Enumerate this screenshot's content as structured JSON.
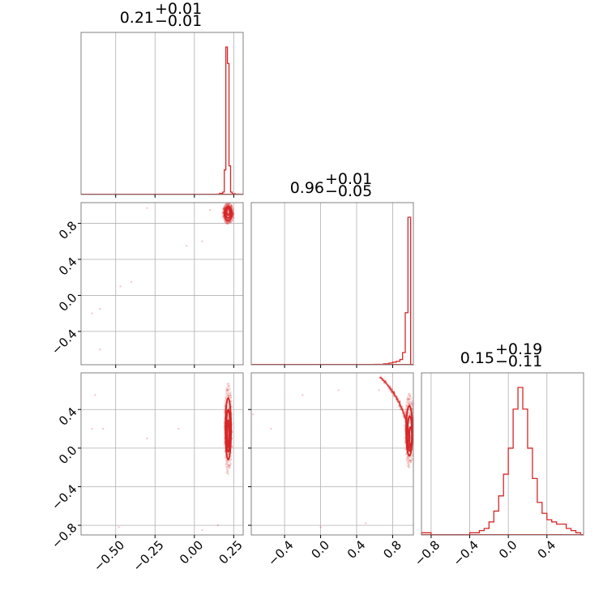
{
  "chart_data": {
    "type": "corner",
    "color": "#d62728",
    "grid": true,
    "parameter_ranges": [
      [
        -0.72,
        0.31
      ],
      [
        -0.77,
        1.03
      ],
      [
        -0.9,
        0.78
      ]
    ],
    "ticks": [
      [
        {
          "v": -0.5,
          "label": "−0.50"
        },
        {
          "v": -0.25,
          "label": "−0.25"
        },
        {
          "v": 0.0,
          "label": "0.00"
        },
        {
          "v": 0.25,
          "label": "0.25"
        }
      ],
      [
        {
          "v": -0.4,
          "label": "−0.4"
        },
        {
          "v": 0.0,
          "label": "0.0"
        },
        {
          "v": 0.4,
          "label": "0.4"
        },
        {
          "v": 0.8,
          "label": "0.8"
        }
      ],
      [
        {
          "v": -0.8,
          "label": "−0.8"
        },
        {
          "v": -0.4,
          "label": "−0.4"
        },
        {
          "v": 0.0,
          "label": "0.0"
        },
        {
          "v": 0.4,
          "label": "0.4"
        }
      ]
    ],
    "titles": [
      {
        "main": "0.21",
        "plus": "+0.01",
        "minus": "−0.01"
      },
      {
        "main": "0.96",
        "plus": "+0.01",
        "minus": "−0.05"
      },
      {
        "main": "0.15",
        "plus": "+0.19",
        "minus": "−0.11"
      }
    ],
    "histograms": [
      {
        "edges": [
          0.14,
          0.16,
          0.18,
          0.19,
          0.2,
          0.21,
          0.22,
          0.23,
          0.24,
          0.26,
          0.28
        ],
        "counts": [
          0.5,
          1.5,
          3,
          30,
          180,
          160,
          35,
          3,
          1,
          0.5
        ]
      },
      {
        "edges": [
          0.6,
          0.7,
          0.76,
          0.8,
          0.84,
          0.88,
          0.91,
          0.94,
          0.97,
          1.0,
          1.03
        ],
        "counts": [
          0.5,
          1,
          2,
          3,
          4,
          6,
          14,
          60,
          170,
          0
        ]
      },
      {
        "edges": [
          -0.9,
          -0.85,
          -0.8,
          -0.75,
          -0.7,
          -0.65,
          -0.6,
          -0.55,
          -0.5,
          -0.45,
          -0.4,
          -0.35,
          -0.3,
          -0.25,
          -0.2,
          -0.15,
          -0.1,
          -0.05,
          0.0,
          0.05,
          0.1,
          0.15,
          0.2,
          0.25,
          0.3,
          0.35,
          0.4,
          0.45,
          0.5,
          0.55,
          0.6,
          0.65,
          0.7,
          0.75,
          0.78
        ],
        "counts": [
          1,
          1,
          0,
          0,
          0,
          0,
          0,
          0,
          0,
          0,
          1,
          1,
          2,
          3,
          6,
          11,
          18,
          28,
          40,
          58,
          68,
          58,
          40,
          26,
          15,
          10,
          7,
          6,
          5,
          5,
          3,
          2,
          1,
          0
        ]
      }
    ],
    "scatter": {
      "p10": [
        [
          -0.65,
          -0.2
        ],
        [
          -0.6,
          -0.15
        ],
        [
          -0.47,
          0.1
        ],
        [
          -0.4,
          0.15
        ],
        [
          -0.05,
          0.55
        ],
        [
          0.05,
          0.6
        ],
        [
          0.1,
          0.95
        ],
        [
          -0.3,
          0.97
        ],
        [
          -0.6,
          -0.6
        ]
      ],
      "p20": [
        [
          -0.63,
          0.55
        ],
        [
          -0.58,
          0.2
        ],
        [
          -0.48,
          -0.82
        ],
        [
          -0.3,
          0.1
        ],
        [
          0.05,
          -0.85
        ],
        [
          0.15,
          -0.8
        ],
        [
          -0.65,
          0.2
        ],
        [
          -0.1,
          0.2
        ]
      ],
      "p21": [
        [
          0.65,
          0.6
        ],
        [
          0.0,
          -0.82
        ],
        [
          0.5,
          -0.78
        ],
        [
          -0.55,
          0.2
        ],
        [
          -0.2,
          0.55
        ],
        [
          0.2,
          0.6
        ],
        [
          -0.75,
          0.35
        ]
      ]
    },
    "contours": {
      "p10": [
        {
          "cx": 0.215,
          "cy": 0.93,
          "rx": 0.01,
          "ry": 0.04
        },
        {
          "cx": 0.215,
          "cy": 0.92,
          "rx": 0.018,
          "ry": 0.06
        },
        {
          "cx": 0.215,
          "cy": 0.91,
          "rx": 0.024,
          "ry": 0.08
        }
      ],
      "p20": [
        {
          "cx": 0.215,
          "cy": 0.15,
          "rx": 0.006,
          "ry": 0.14
        },
        {
          "cx": 0.215,
          "cy": 0.18,
          "rx": 0.012,
          "ry": 0.22
        },
        {
          "cx": 0.215,
          "cy": 0.2,
          "rx": 0.018,
          "ry": 0.32
        }
      ],
      "p21": [
        {
          "cx": 1.0,
          "cy": 0.12,
          "rx": 0.015,
          "ry": 0.1
        },
        {
          "cx": 0.99,
          "cy": 0.15,
          "rx": 0.025,
          "ry": 0.18
        },
        {
          "cx": 0.985,
          "cy": 0.18,
          "rx": 0.035,
          "ry": 0.26
        }
      ]
    },
    "arc_p21": {
      "cx": 0.0,
      "cy": 0.0,
      "r": 0.99,
      "from_deg": 0,
      "to_deg": 48
    }
  }
}
